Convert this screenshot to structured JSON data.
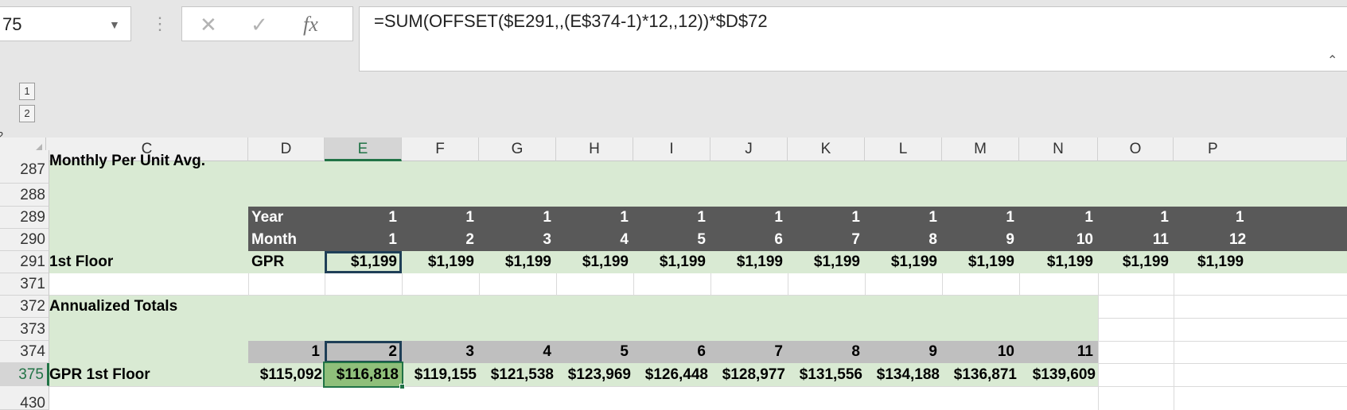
{
  "formula_bar": {
    "name_box": "75",
    "formula": "=SUM(OFFSET($E291,,(E$374-1)*12,,12))*$D$72",
    "cancel_icon": "x-icon",
    "enter_icon": "check-icon",
    "fx_label": "fx"
  },
  "outline": {
    "levels": [
      "1",
      "2"
    ],
    "corner_level": "2"
  },
  "columns": [
    "C",
    "D",
    "E",
    "F",
    "G",
    "H",
    "I",
    "J",
    "K",
    "L",
    "M",
    "N",
    "O",
    "P"
  ],
  "rows": {
    "r287": {
      "num": "287",
      "label": "Monthly Per Unit Avg."
    },
    "r288": {
      "num": "288"
    },
    "r289": {
      "num": "289",
      "label": "Year",
      "values": [
        "1",
        "1",
        "1",
        "1",
        "1",
        "1",
        "1",
        "1",
        "1",
        "1",
        "1",
        "1"
      ]
    },
    "r290": {
      "num": "290",
      "label": "Month",
      "values": [
        "1",
        "2",
        "3",
        "4",
        "5",
        "6",
        "7",
        "8",
        "9",
        "10",
        "11",
        "12"
      ]
    },
    "r291": {
      "num": "291",
      "label_c": "1st Floor",
      "label_d": "GPR",
      "values": [
        "$1,199",
        "$1,199",
        "$1,199",
        "$1,199",
        "$1,199",
        "$1,199",
        "$1,199",
        "$1,199",
        "$1,199",
        "$1,199",
        "$1,199",
        "$1,199"
      ]
    },
    "r371": {
      "num": "371"
    },
    "r372": {
      "num": "372",
      "label": "Annualized Totals"
    },
    "r373": {
      "num": "373"
    },
    "r374": {
      "num": "374",
      "values": [
        "1",
        "2",
        "3",
        "4",
        "5",
        "6",
        "7",
        "8",
        "9",
        "10",
        "11"
      ]
    },
    "r375": {
      "num": "375",
      "label": "GPR 1st Floor",
      "values": [
        "$115,092",
        "$116,818",
        "$119,155",
        "$121,538",
        "$123,969",
        "$126,448",
        "$128,977",
        "$131,556",
        "$134,188",
        "$136,871",
        "$139,609"
      ]
    },
    "r430": {
      "num": "430"
    }
  },
  "colors": {
    "green_fill": "#d9ead3",
    "dark_fill": "#595959",
    "gray_fill": "#bfbfbf",
    "selected_fill": "#8fbf7a",
    "accent": "#217346"
  }
}
